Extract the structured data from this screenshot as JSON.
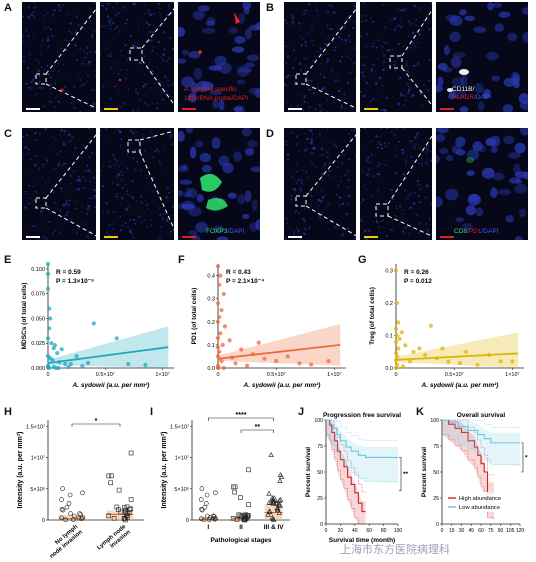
{
  "figure": {
    "panel_letters": [
      "A",
      "B",
      "C",
      "D",
      "E",
      "F",
      "G",
      "H",
      "I",
      "J",
      "K"
    ],
    "microscopy": {
      "A": {
        "label_line1": "A. sydowii specific",
        "label_line2": "18S rRNA probe/DAPI",
        "color": "#e02020"
      },
      "B": {
        "label_cd11b": "CD11B/",
        "label_hla": "HLADR",
        "label_dapi": "/DAPI",
        "color_cd11b": "#ffffff",
        "color_hla": "#e02020",
        "color_dapi": "#3a5bff"
      },
      "C": {
        "label_foxp3": "FOXP3",
        "label_dapi": "/DAPI",
        "color_foxp3": "#2ee06a",
        "color_dapi": "#3a5bff"
      },
      "D": {
        "label_cd8": "CD8",
        "label_pd1": "PD1",
        "label_dapi": "DAPI",
        "color_cd8": "#2ee06a",
        "color_pd1": "#e02020",
        "color_dapi": "#3a5bff"
      }
    },
    "colors": {
      "tissue_bg": "#07071a",
      "nuclei": "#2230a0",
      "white_scale": "#ffffff",
      "yellow_scale": "#e8d000",
      "red_scale": "#e02020",
      "teal": "#1fa8c0",
      "orange": "#ee6a3a",
      "gold": "#e0b400",
      "red_line": "#d42020",
      "light_blue": "#6cc6e6"
    },
    "watermark": "上海市东方医院病理科"
  },
  "chart_data": [
    {
      "panel": "E",
      "type": "scatter",
      "ylabel": "MDSCs (of total cells)",
      "xlabel": "A. sydowii (a.u. per mm²)",
      "annot_r": "R = 0.59",
      "annot_p": "P = 1.3×10⁻⁶",
      "yticks": [
        "0.000",
        "0.025",
        "0.050",
        "0.075",
        "0.100"
      ],
      "xticks": [
        "0",
        "0.5×10⁷",
        "1×10⁷"
      ],
      "ylim": [
        0,
        0.105
      ],
      "xlim": [
        0,
        11000000.0
      ],
      "color": "#1fa8c0",
      "fit": {
        "y0": 0.005,
        "y1": 0.021,
        "x1": 10500000.0
      },
      "points": [
        [
          0,
          0.105
        ],
        [
          0,
          0.095
        ],
        [
          0,
          0.08
        ],
        [
          100000.0,
          0.06
        ],
        [
          200000.0,
          0.05
        ],
        [
          100000.0,
          0.04
        ],
        [
          0,
          0.03
        ],
        [
          300000.0,
          0.025
        ],
        [
          500000.0,
          0.02
        ],
        [
          800000.0,
          0.015
        ],
        [
          0,
          0.012
        ],
        [
          200000.0,
          0.01
        ],
        [
          400000.0,
          0.008
        ],
        [
          1000000.0,
          0.006
        ],
        [
          1500000.0,
          0.004
        ],
        [
          2000000.0,
          0.004
        ],
        [
          3000000.0,
          0.002
        ],
        [
          0,
          0.002
        ],
        [
          0,
          0.001
        ],
        [
          500000.0,
          0.001
        ],
        [
          7000000.0,
          0.004
        ],
        [
          8500000.0,
          0.003
        ],
        [
          4000000.0,
          0.045
        ],
        [
          6000000.0,
          0.03
        ],
        [
          2500000.0,
          0.012
        ],
        [
          1200000.0,
          0.019
        ],
        [
          600000.0,
          0.023
        ],
        [
          3500000.0,
          0.005
        ],
        [
          100000.0,
          0.0
        ],
        [
          700000.0,
          0.0
        ],
        [
          900000.0,
          0.0
        ],
        [
          1800000.0,
          0.001
        ]
      ]
    },
    {
      "panel": "F",
      "type": "scatter",
      "ylabel": "PD1 (of total cells)",
      "xlabel": "A. sydowii (a.u. per mm²)",
      "annot_r": "R = 0.43",
      "annot_p": "P = 2.1×10⁻⁴",
      "yticks": [
        "0.0",
        "0.1",
        "0.2",
        "0.3",
        "0.4"
      ],
      "xticks": [
        "0",
        "0.5×10⁷",
        "1×10⁷"
      ],
      "ylim": [
        0,
        0.45
      ],
      "xlim": [
        0,
        11000000.0
      ],
      "color": "#ee6a3a",
      "fit": {
        "y0": 0.04,
        "y1": 0.1,
        "x1": 10500000.0
      },
      "points": [
        [
          0,
          0.44
        ],
        [
          200000.0,
          0.4
        ],
        [
          100000.0,
          0.36
        ],
        [
          500000.0,
          0.32
        ],
        [
          0,
          0.28
        ],
        [
          300000.0,
          0.25
        ],
        [
          100000.0,
          0.22
        ],
        [
          0,
          0.2
        ],
        [
          600000.0,
          0.18
        ],
        [
          200000.0,
          0.15
        ],
        [
          0,
          0.13
        ],
        [
          1000000.0,
          0.12
        ],
        [
          400000.0,
          0.1
        ],
        [
          0,
          0.09
        ],
        [
          2000000.0,
          0.08
        ],
        [
          100000.0,
          0.07
        ],
        [
          3000000.0,
          0.06
        ],
        [
          0,
          0.05
        ],
        [
          4000000.0,
          0.04
        ],
        [
          5000000.0,
          0.03
        ],
        [
          7000000.0,
          0.02
        ],
        [
          9500000.0,
          0.03
        ],
        [
          1500000.0,
          0.02
        ],
        [
          2500000.0,
          0.01
        ],
        [
          6000000.0,
          0.05
        ],
        [
          8000000.0,
          0.015
        ],
        [
          0,
          0.01
        ],
        [
          0,
          0.0
        ],
        [
          500000.0,
          0.0
        ],
        [
          300000.0,
          0.03
        ],
        [
          1200000.0,
          0.045
        ],
        [
          3500000.0,
          0.11
        ]
      ]
    },
    {
      "panel": "G",
      "type": "scatter",
      "ylabel": "Treg (of total cells)",
      "xlabel": "A. sydowii (a.u. per mm²)",
      "annot_r": "R = 0.26",
      "annot_p": "P = 0.012",
      "yticks": [
        "0.0",
        "0.1",
        "0.2",
        "0.3"
      ],
      "xticks": [
        "0",
        "0.5×10⁷",
        "1×10⁷"
      ],
      "ylim": [
        0,
        0.32
      ],
      "xlim": [
        0,
        11000000.0
      ],
      "color": "#e0b400",
      "fit": {
        "y0": 0.025,
        "y1": 0.045,
        "x1": 10500000.0
      },
      "points": [
        [
          0,
          0.3
        ],
        [
          100000.0,
          0.2
        ],
        [
          200000.0,
          0.14
        ],
        [
          0,
          0.12
        ],
        [
          500000.0,
          0.11
        ],
        [
          100000.0,
          0.1
        ],
        [
          300000.0,
          0.09
        ],
        [
          0,
          0.08
        ],
        [
          800000.0,
          0.07
        ],
        [
          200000.0,
          0.06
        ],
        [
          1500000.0,
          0.05
        ],
        [
          0,
          0.045
        ],
        [
          2500000.0,
          0.04
        ],
        [
          100000.0,
          0.035
        ],
        [
          3500000.0,
          0.03
        ],
        [
          0,
          0.025
        ],
        [
          4500000.0,
          0.02
        ],
        [
          5500000.0,
          0.015
        ],
        [
          7000000.0,
          0.01
        ],
        [
          9000000.0,
          0.02
        ],
        [
          100000.0,
          0.01
        ],
        [
          0,
          0.0
        ],
        [
          600000.0,
          0.005
        ],
        [
          1200000.0,
          0.02
        ],
        [
          2000000.0,
          0.06
        ],
        [
          3000000.0,
          0.13
        ],
        [
          4000000.0,
          0.06
        ],
        [
          6000000.0,
          0.05
        ],
        [
          8000000.0,
          0.04
        ],
        [
          10000000.0,
          0.02
        ]
      ]
    },
    {
      "panel": "H",
      "type": "box",
      "ylabel": "Intensity (a.u. per mm²)",
      "yticks": [
        "0",
        "5×10⁶",
        "1×10⁷",
        "1.5×10⁷"
      ],
      "ylim": [
        0,
        16000000.0
      ],
      "categories": [
        "No lymph node invasion",
        "Lymph node invasion"
      ],
      "significance": "*",
      "medians": [
        200000.0,
        900000.0
      ],
      "q3": [
        800000.0,
        1500000.0
      ]
    },
    {
      "panel": "I",
      "type": "box",
      "ylabel": "Intensity (a.u. per mm²)",
      "xlabel": "Pathological stages",
      "yticks": [
        "0",
        "5×10⁶",
        "1×10⁷",
        "1.5×10⁷"
      ],
      "ylim": [
        0,
        16000000.0
      ],
      "categories": [
        "I",
        "II",
        "III & IV"
      ],
      "significance_top": "****",
      "significance_mid": "**",
      "medians": [
        100000.0,
        200000.0,
        1200000.0
      ],
      "q3": [
        500000.0,
        600000.0,
        2500000.0
      ]
    },
    {
      "panel": "J",
      "type": "line",
      "title": "Progression free survival",
      "ylabel": "Percent survival",
      "xlabel": "Survival time (month)",
      "yticks": [
        "0",
        "25",
        "50",
        "75",
        "100"
      ],
      "xticks": [
        "0",
        "20",
        "40",
        "60",
        "80",
        "100"
      ],
      "ylim": [
        0,
        100
      ],
      "xlim": [
        0,
        100
      ],
      "significance": "**",
      "series": [
        {
          "color": "#d42020",
          "steps": [
            [
              0,
              100
            ],
            [
              5,
              95
            ],
            [
              8,
              88
            ],
            [
              12,
              80
            ],
            [
              16,
              70
            ],
            [
              20,
              62
            ],
            [
              25,
              55
            ],
            [
              30,
              45
            ],
            [
              35,
              38
            ],
            [
              40,
              30
            ],
            [
              45,
              20
            ],
            [
              50,
              12
            ],
            [
              55,
              12
            ]
          ]
        },
        {
          "color": "#6cc6e6",
          "steps": [
            [
              0,
              100
            ],
            [
              6,
              96
            ],
            [
              10,
              92
            ],
            [
              15,
              86
            ],
            [
              20,
              80
            ],
            [
              28,
              74
            ],
            [
              35,
              70
            ],
            [
              45,
              66
            ],
            [
              55,
              64
            ],
            [
              100,
              64
            ]
          ]
        }
      ]
    },
    {
      "panel": "K",
      "type": "line",
      "title": "Overall survival",
      "ylabel": "Percent survival",
      "xlabel": "",
      "yticks": [
        "0",
        "25",
        "50",
        "75",
        "100"
      ],
      "xticks": [
        "0",
        "15",
        "30",
        "45",
        "60",
        "75",
        "90",
        "105",
        "120"
      ],
      "ylim": [
        0,
        100
      ],
      "xlim": [
        0,
        120
      ],
      "significance": "*",
      "legend": [
        "High abundance",
        "Low abundance"
      ],
      "series": [
        {
          "name": "High abundance",
          "color": "#d42020",
          "steps": [
            [
              0,
              100
            ],
            [
              10,
              96
            ],
            [
              20,
              92
            ],
            [
              30,
              88
            ],
            [
              40,
              80
            ],
            [
              50,
              74
            ],
            [
              55,
              66
            ],
            [
              60,
              58
            ],
            [
              65,
              50
            ],
            [
              70,
              30
            ],
            [
              80,
              30
            ]
          ]
        },
        {
          "name": "Low abundance",
          "color": "#6cc6e6",
          "steps": [
            [
              0,
              100
            ],
            [
              12,
              98
            ],
            [
              25,
              94
            ],
            [
              40,
              90
            ],
            [
              55,
              86
            ],
            [
              65,
              82
            ],
            [
              75,
              78
            ],
            [
              120,
              78
            ]
          ]
        }
      ]
    }
  ]
}
